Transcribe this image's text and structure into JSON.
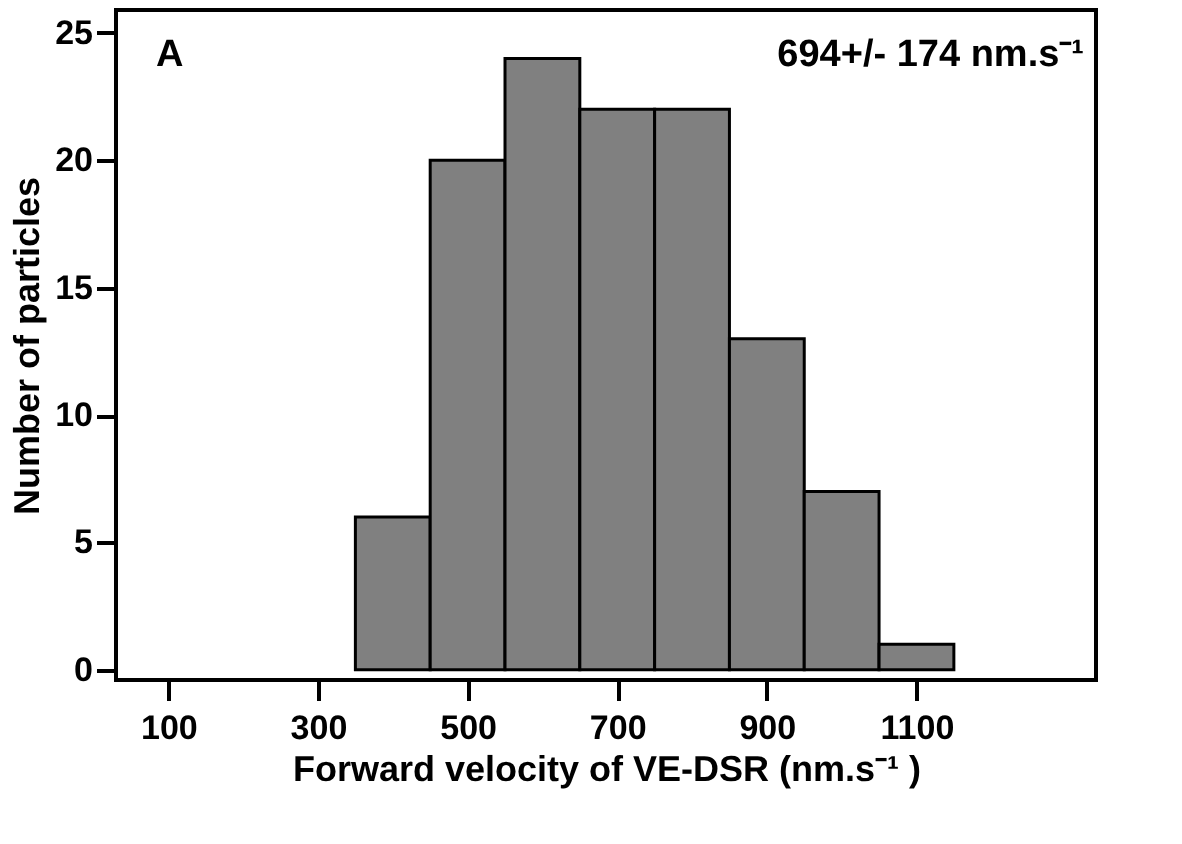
{
  "chart_data": {
    "type": "histogram",
    "xlabel": "Forward velocity of VE-DSR (nm.s⁻¹ )",
    "ylabel": "Number of particles",
    "bins": [
      350,
      450,
      550,
      650,
      750,
      850,
      950,
      1050,
      1150
    ],
    "values": [
      6,
      20,
      24,
      22,
      22,
      13,
      7,
      1
    ],
    "color": "#808080",
    "xlim": [
      30,
      1340
    ],
    "xticks": [
      100,
      300,
      500,
      700,
      900,
      1100
    ],
    "ylim": [
      -0.4,
      25.9
    ],
    "yticks": [
      0,
      5,
      10,
      15,
      20,
      25
    ],
    "grid": false,
    "annotations": [
      "A",
      "694+/- 174 nm.s⁻¹"
    ]
  }
}
